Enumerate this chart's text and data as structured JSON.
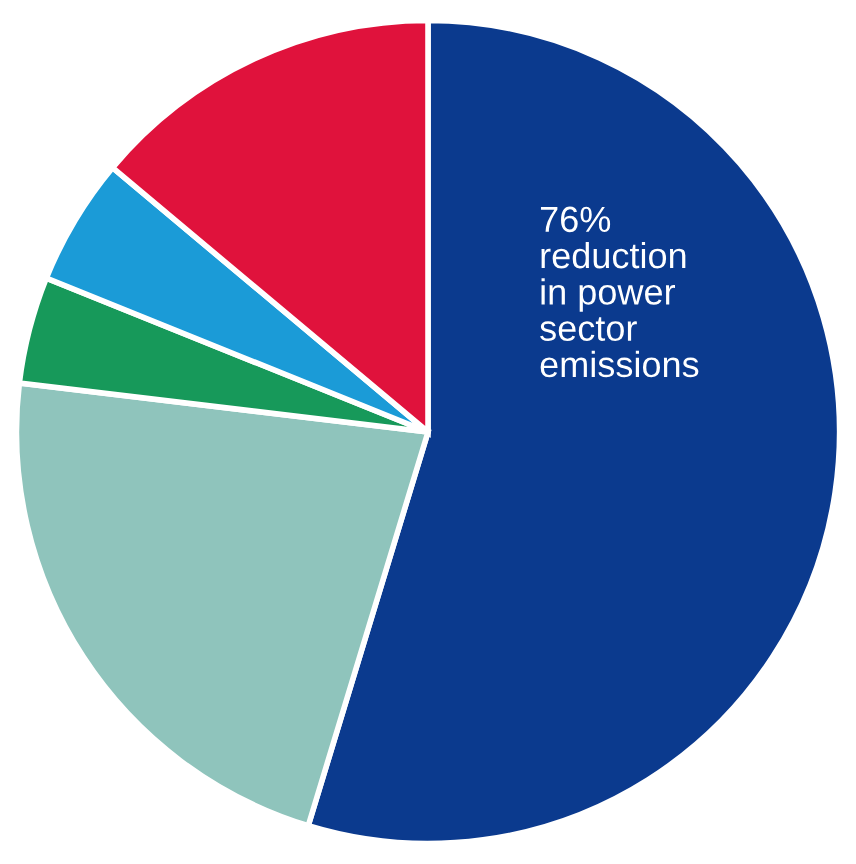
{
  "chart_data": {
    "type": "pie",
    "categories": [
      null,
      null,
      null,
      null,
      null
    ],
    "values": [
      54.7,
      22.2,
      4.2,
      5.0,
      13.9
    ],
    "colors": [
      "#0b3a8e",
      "#8fc4bc",
      "#17995a",
      "#1b9bd7",
      "#e0123c"
    ],
    "annotations": [
      "76%\nreduction\nin power\nsector\nemissions"
    ]
  }
}
